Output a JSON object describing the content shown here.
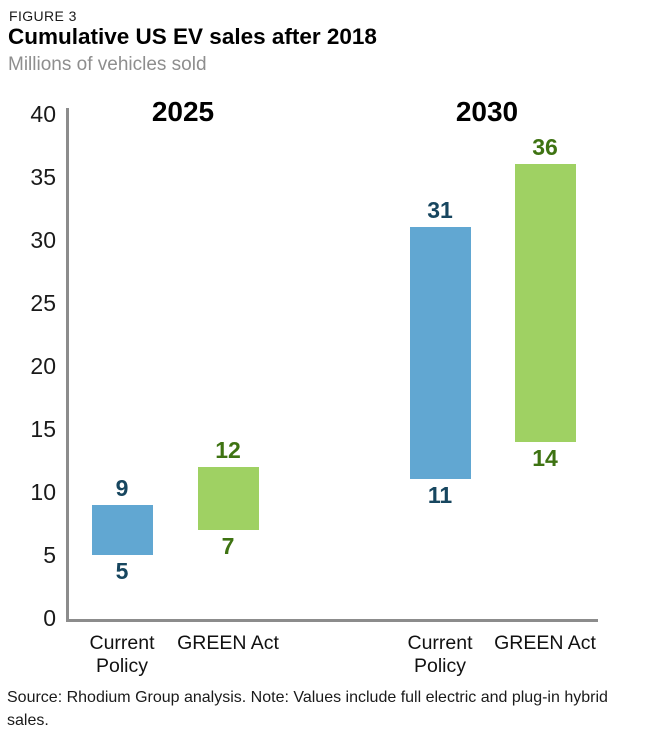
{
  "chart_data": {
    "type": "bar",
    "variant": "floating-range-bars",
    "figure_label": "FIGURE 3",
    "title": "Cumulative US EV sales after 2018",
    "subtitle": "Millions of vehicles sold",
    "ylabel": "Millions of vehicles sold",
    "ylim": [
      0,
      40
    ],
    "yticks": [
      0,
      5,
      10,
      15,
      20,
      25,
      30,
      35,
      40
    ],
    "grid": false,
    "axis_color": "#8c8c8c",
    "groups": [
      {
        "label": "2025",
        "bars": [
          {
            "category": "Current Policy",
            "low": 5,
            "high": 9,
            "bar_color": "#61a7d2",
            "label_color": "#17465f"
          },
          {
            "category": "GREEN Act",
            "low": 7,
            "high": 12,
            "bar_color": "#9fd163",
            "label_color": "#3e7312"
          }
        ]
      },
      {
        "label": "2030",
        "bars": [
          {
            "category": "Current Policy",
            "low": 11,
            "high": 31,
            "bar_color": "#61a7d2",
            "label_color": "#17465f"
          },
          {
            "category": "GREEN Act",
            "low": 14,
            "high": 36,
            "bar_color": "#9fd163",
            "label_color": "#3e7312"
          }
        ]
      }
    ],
    "source_note": "Source: Rhodium Group analysis. Note: Values include full electric and plug-in hybrid sales."
  }
}
